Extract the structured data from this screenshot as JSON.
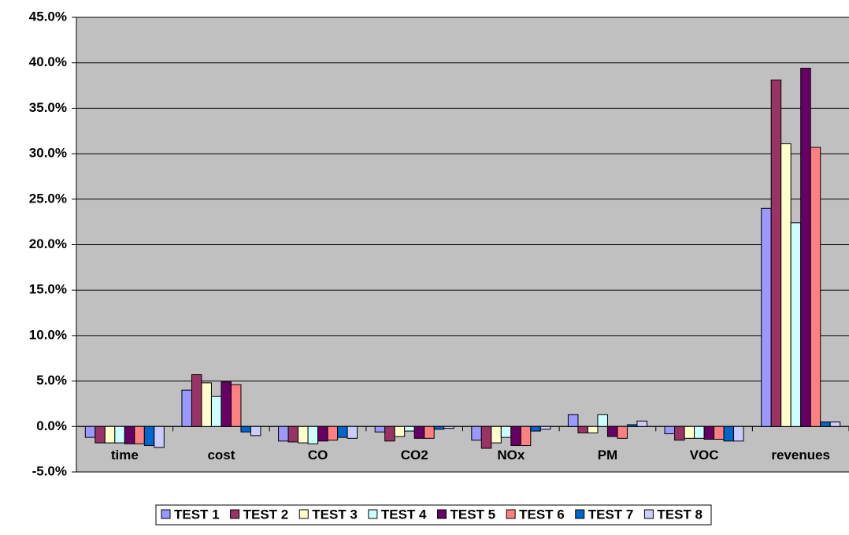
{
  "chart_data": {
    "type": "bar",
    "categories": [
      "time",
      "cost",
      "CO",
      "CO2",
      "NOx",
      "PM",
      "VOC",
      "revenues"
    ],
    "series": [
      {
        "name": "TEST 1",
        "color": "#9999ff",
        "values": [
          -1.2,
          4.0,
          -1.6,
          -0.6,
          -1.5,
          1.3,
          -0.8,
          24.0
        ]
      },
      {
        "name": "TEST 2",
        "color": "#993366",
        "values": [
          -1.8,
          5.7,
          -1.7,
          -1.6,
          -2.4,
          -0.7,
          -1.5,
          38.1
        ]
      },
      {
        "name": "TEST 3",
        "color": "#ffffcc",
        "values": [
          -1.8,
          4.8,
          -1.8,
          -1.1,
          -1.8,
          -0.7,
          -1.3,
          31.1
        ]
      },
      {
        "name": "TEST 4",
        "color": "#ccffff",
        "values": [
          -1.8,
          3.3,
          -1.9,
          -0.5,
          -1.2,
          1.3,
          -1.3,
          22.4
        ]
      },
      {
        "name": "TEST 5",
        "color": "#660066",
        "values": [
          -1.9,
          4.9,
          -1.6,
          -1.3,
          -2.1,
          -1.1,
          -1.4,
          39.4
        ]
      },
      {
        "name": "TEST 6",
        "color": "#ff8080",
        "values": [
          -1.9,
          4.6,
          -1.5,
          -1.3,
          -2.1,
          -1.3,
          -1.4,
          30.7
        ]
      },
      {
        "name": "TEST 7",
        "color": "#0066cc",
        "values": [
          -2.1,
          -0.6,
          -1.2,
          -0.3,
          -0.5,
          0.2,
          -1.6,
          0.5
        ]
      },
      {
        "name": "TEST 8",
        "color": "#ccccff",
        "values": [
          -2.3,
          -1.0,
          -1.3,
          -0.2,
          -0.3,
          0.6,
          -1.6,
          0.5
        ]
      }
    ],
    "ylim": [
      -5,
      45
    ],
    "yticks": [
      {
        "value": -5,
        "label": "-5.0%"
      },
      {
        "value": 0,
        "label": "0.0%"
      },
      {
        "value": 5,
        "label": "5.0%"
      },
      {
        "value": 10,
        "label": "10.0%"
      },
      {
        "value": 15,
        "label": "15.0%"
      },
      {
        "value": 20,
        "label": "20.0%"
      },
      {
        "value": 25,
        "label": "25.0%"
      },
      {
        "value": 30,
        "label": "30.0%"
      },
      {
        "value": 35,
        "label": "35.0%"
      },
      {
        "value": 40,
        "label": "40.0%"
      },
      {
        "value": 45,
        "label": "45.0%"
      }
    ],
    "grid": true,
    "plot_background": "#c0c0c0",
    "legend": "bottom"
  }
}
